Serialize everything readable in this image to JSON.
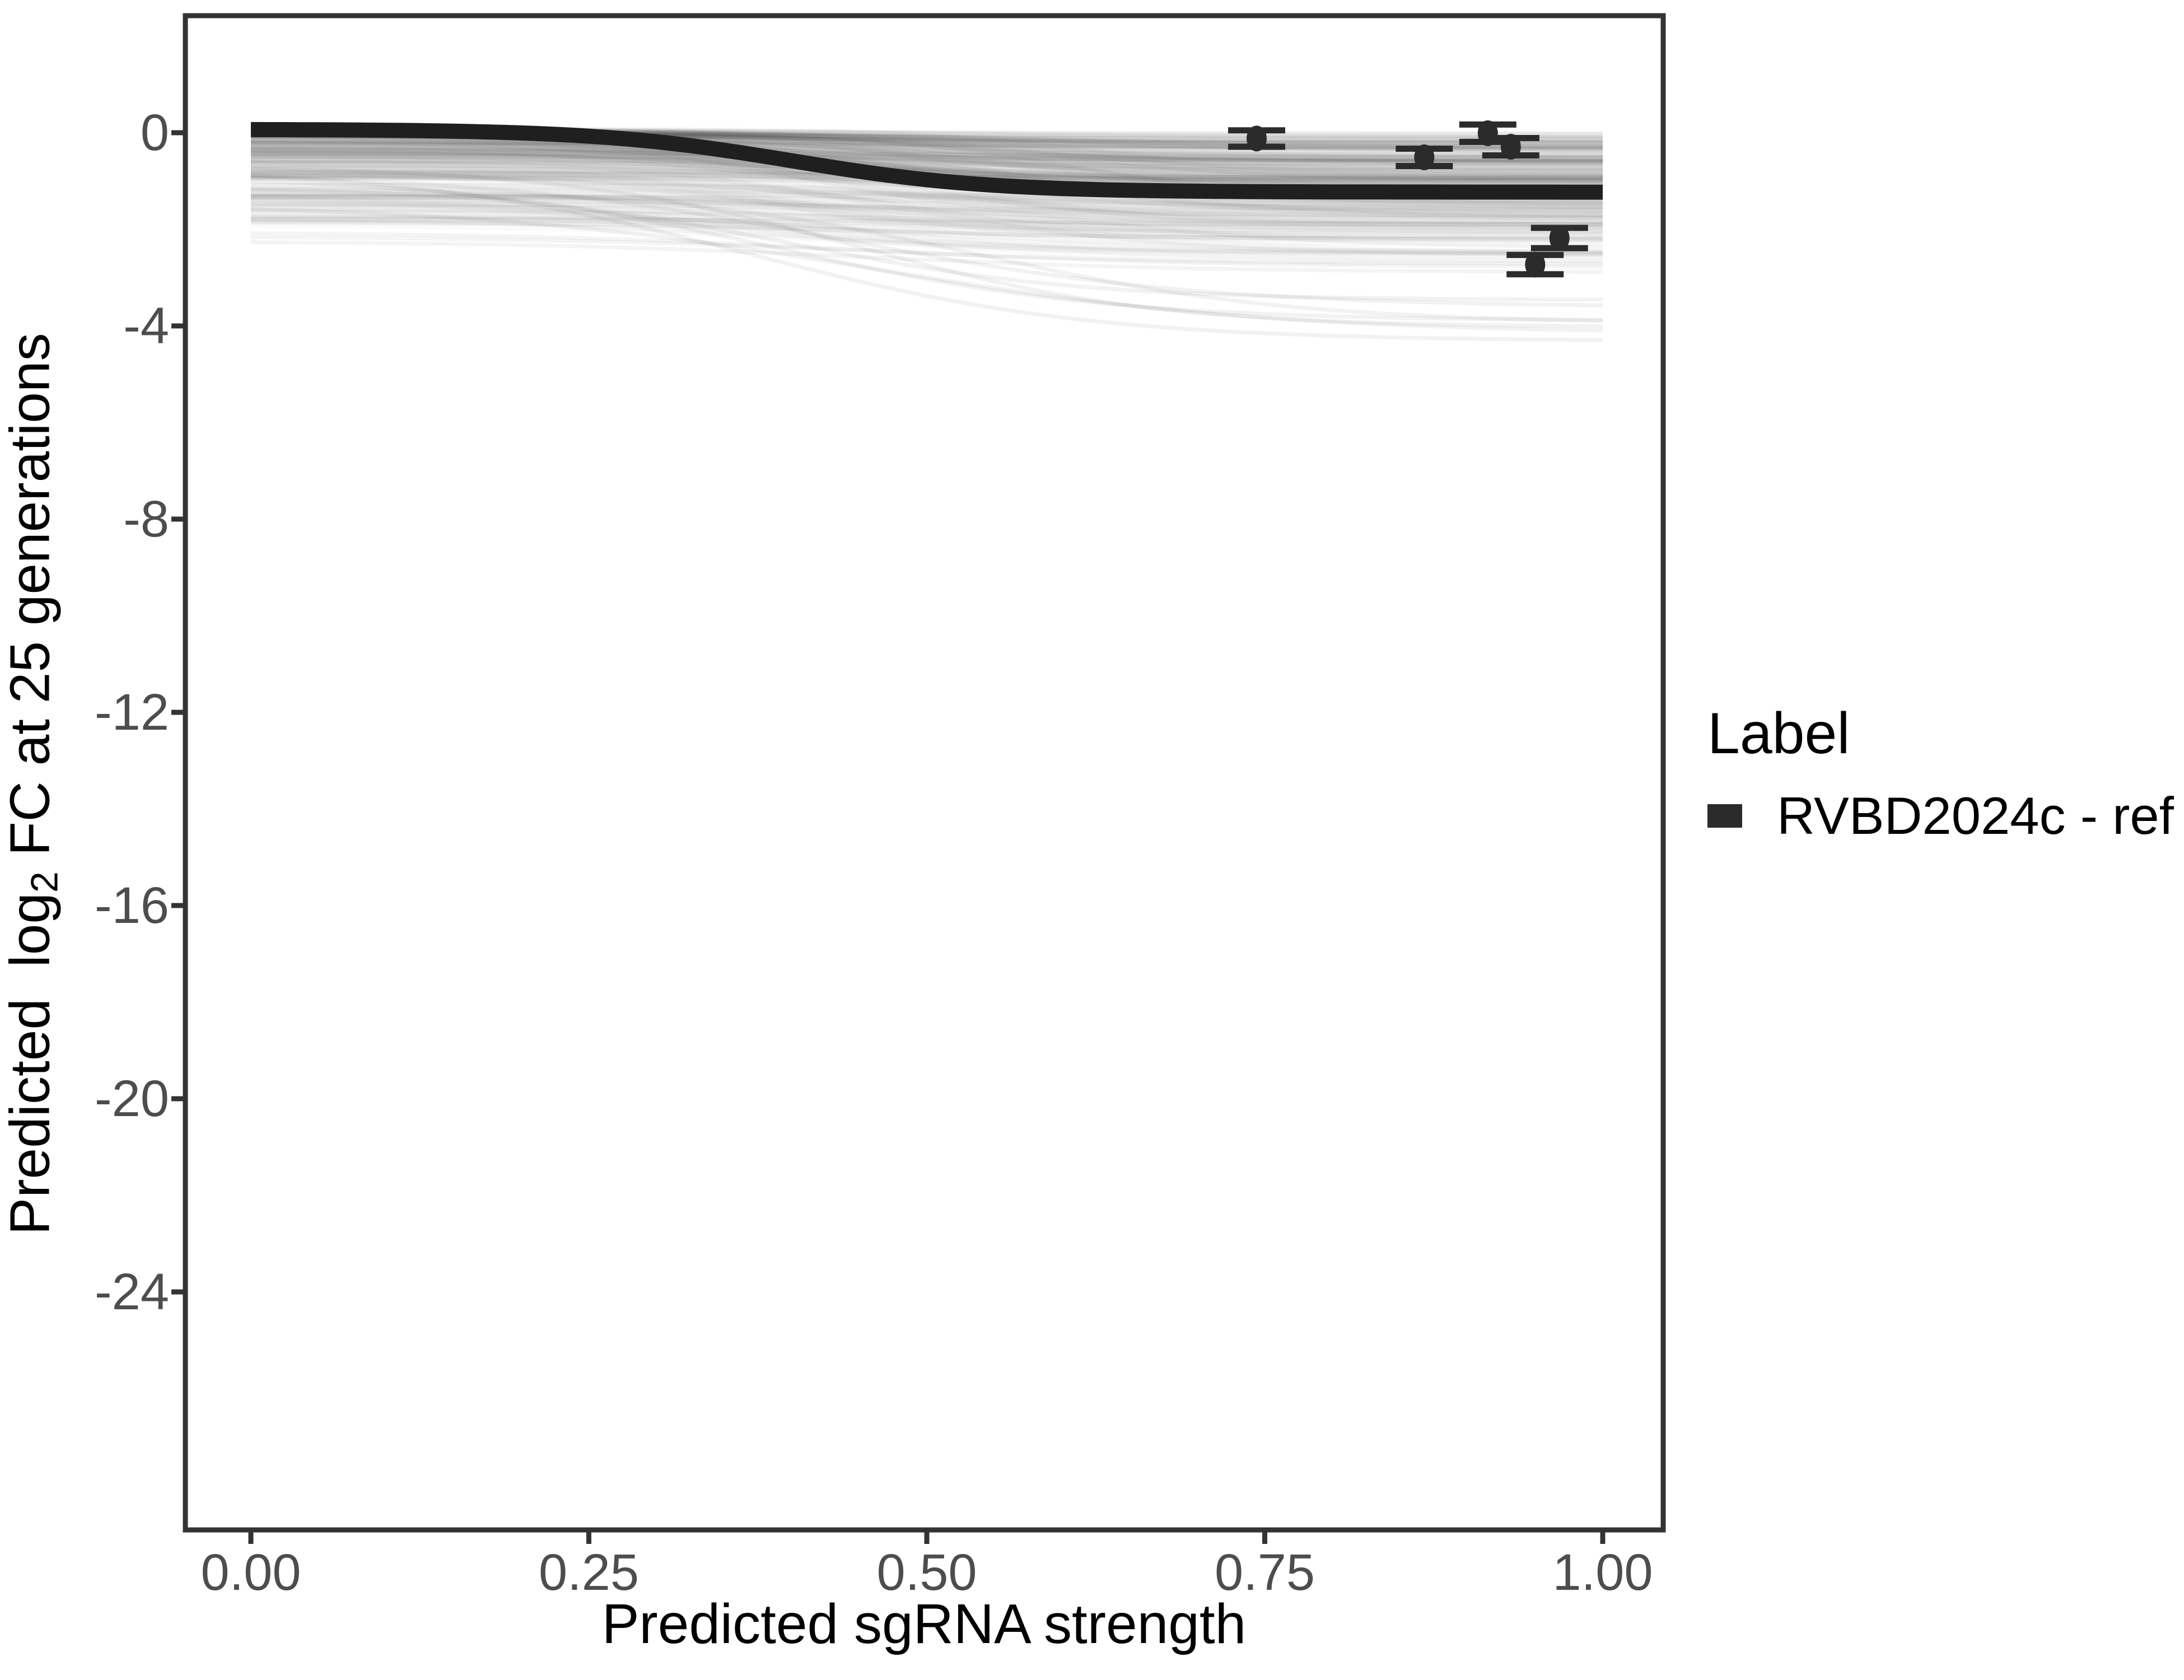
{
  "figure": {
    "kind": "statistical line chart (ggplot style)",
    "background": "#ffffff"
  },
  "axes": {
    "x": {
      "title": "Predicted sgRNA strength",
      "ticks": [
        "0.00",
        "0.25",
        "0.50",
        "0.75",
        "1.00"
      ],
      "tick_values": [
        0,
        0.25,
        0.5,
        0.75,
        1.0
      ]
    },
    "y": {
      "title_pre": "Predicted  log",
      "title_sub": "2",
      "title_post": " FC at 25 generations",
      "ticks": [
        "0",
        "-4",
        "-8",
        "-12",
        "-16",
        "-20",
        "-24"
      ],
      "tick_values": [
        0,
        -4,
        -8,
        -12,
        -16,
        -20,
        -24
      ]
    }
  },
  "legend": {
    "title": "Label",
    "entries": [
      {
        "label": "RVBD2024c - ref",
        "swatch": "thick-line",
        "swatch_color": "#2b2b2b"
      }
    ]
  },
  "colors": {
    "panel_border": "#333333",
    "tick_mark": "#333333",
    "tick_label": "#4d4d4d",
    "axis_title": "#000000",
    "reference_line": "#1f1f1f",
    "error_bar": "#2b2b2b",
    "ensemble_stroke": "#000000"
  },
  "chart_data": {
    "type": "line",
    "title": "",
    "xlabel": "Predicted sgRNA strength",
    "ylabel": "Predicted log2 FC at 25 generations",
    "xlim": [
      -0.05,
      1.05
    ],
    "ylim": [
      -28.9,
      2.4
    ],
    "x_ticks": [
      0,
      0.25,
      0.5,
      0.75,
      1.0
    ],
    "y_ticks": [
      0,
      -4,
      -8,
      -12,
      -16,
      -20,
      -24
    ],
    "grid": "off",
    "legend_position": "right",
    "reference_curve": {
      "name": "RVBD2024c - ref",
      "model": "y = 0.07 - 1.30 / (1 + exp(-14*(x - 0.40)))",
      "params": {
        "c": 0.07,
        "L": 1.3,
        "k": 14,
        "x0": 0.4
      },
      "x": [
        0,
        0.05,
        0.1,
        0.15,
        0.2,
        0.25,
        0.3,
        0.35,
        0.4,
        0.45,
        0.5,
        0.55,
        0.6,
        0.65,
        0.7,
        0.75,
        0.8,
        0.85,
        0.9,
        0.95,
        1.0
      ],
      "y": [
        0.07,
        0.06,
        0.05,
        0.03,
        0.0,
        -0.07,
        -0.19,
        -0.36,
        -0.58,
        -0.8,
        -0.97,
        -1.09,
        -1.16,
        -1.19,
        -1.21,
        -1.22,
        -1.23,
        -1.23,
        -1.23,
        -1.23,
        -1.23
      ]
    },
    "observed_points": [
      {
        "x": 0.744,
        "y": -0.12,
        "ymin": -0.29,
        "ymax": 0.05
      },
      {
        "x": 0.868,
        "y": -0.51,
        "ymin": -0.69,
        "ymax": -0.33
      },
      {
        "x": 0.915,
        "y": -0.01,
        "ymin": -0.19,
        "ymax": 0.17
      },
      {
        "x": 0.932,
        "y": -0.29,
        "ymin": -0.47,
        "ymax": -0.11
      },
      {
        "x": 0.95,
        "y": -2.73,
        "ymin": -2.93,
        "ymax": -2.53
      },
      {
        "x": 0.968,
        "y": -2.18,
        "ymin": -2.39,
        "ymax": -1.97
      }
    ],
    "ensemble": {
      "description": "Translucent gray sigmoid sample curves forming a gradient band from ~0.08 at x=0 down to ~-2.7 at x=1, with a few pale outlier curves dropping to ~-4.6 and a few pale flat lines near -1.6 to -2.3",
      "seed": 42,
      "count_main": 170,
      "count_deep": 7,
      "count_flat": 4,
      "start_range": [
        0.08,
        -2.3
      ],
      "end_range": [
        -0.25,
        -4.6
      ],
      "midpoint_range": [
        0.33,
        0.63
      ],
      "steepness_range": [
        7,
        16
      ],
      "stroke_opacity_range": [
        0.014,
        0.045
      ]
    }
  }
}
